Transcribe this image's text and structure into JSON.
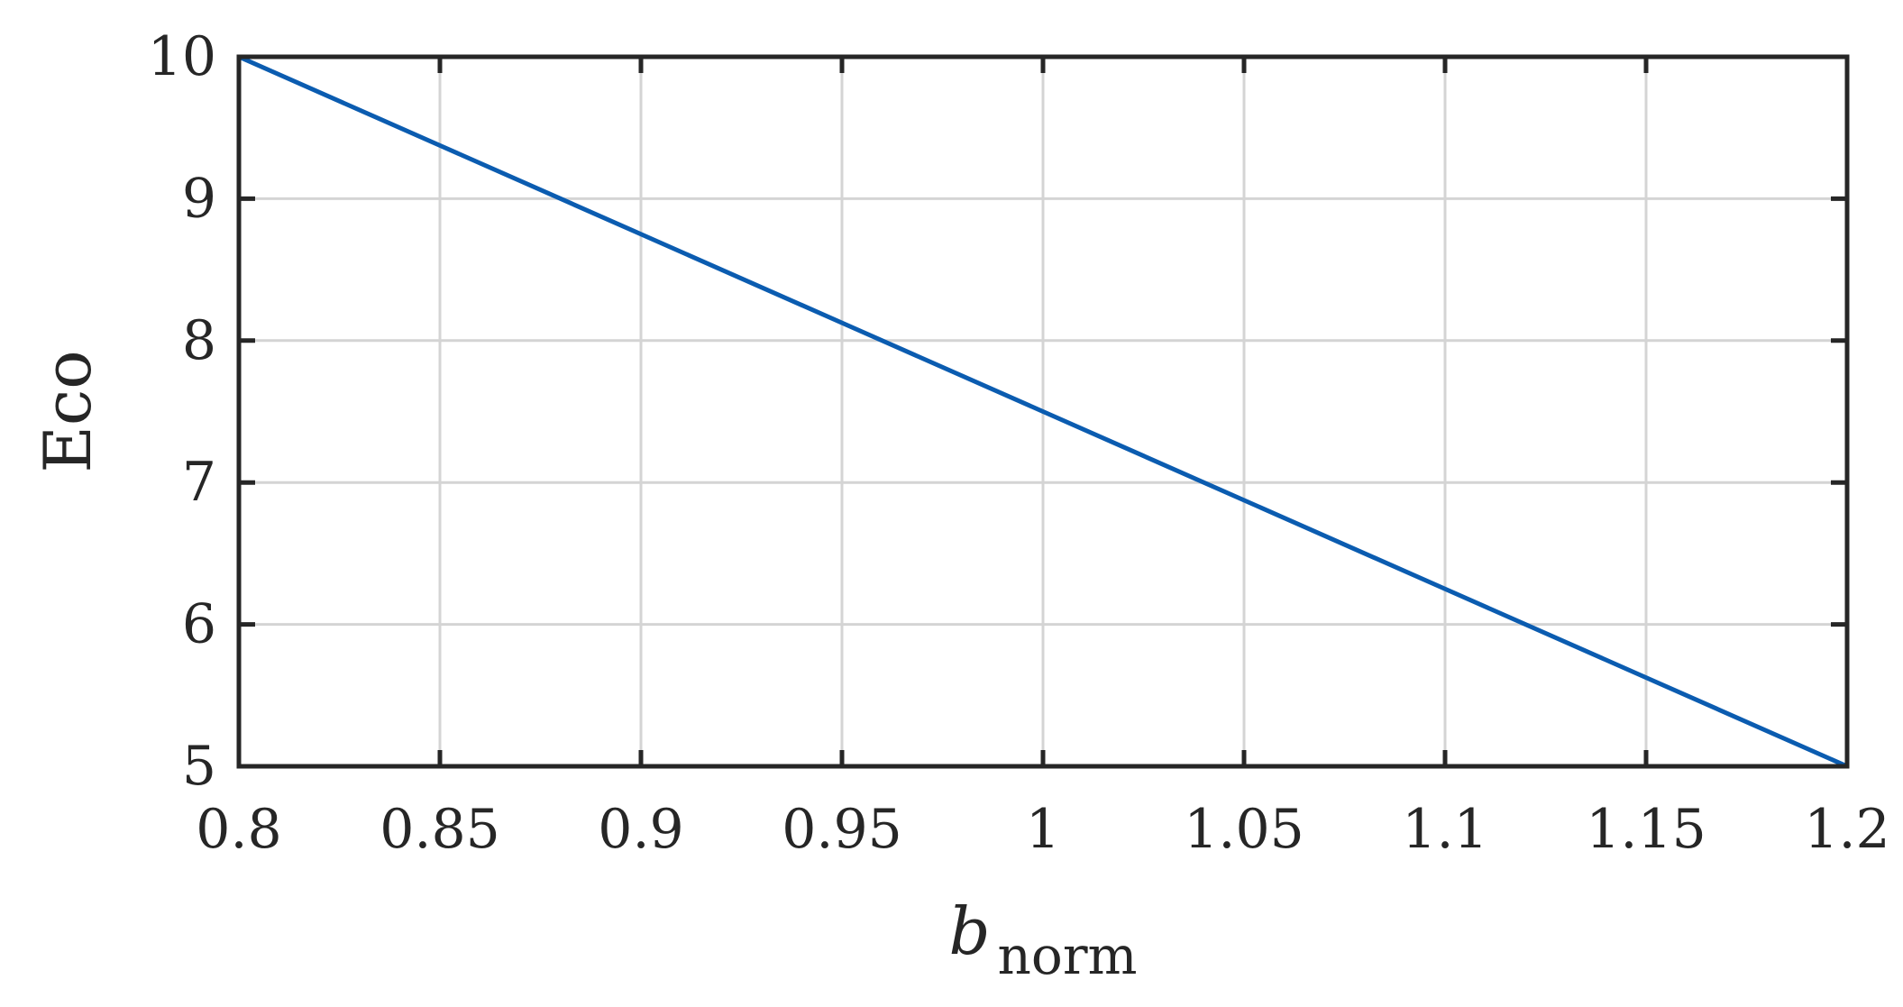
{
  "chart_data": {
    "type": "line",
    "xlabel": {
      "main": "b",
      "subscript": "norm"
    },
    "ylabel": "Eco",
    "xlim": [
      0.8,
      1.2
    ],
    "ylim": [
      5,
      10
    ],
    "xticks": [
      0.8,
      0.85,
      0.9,
      0.95,
      1,
      1.05,
      1.1,
      1.15,
      1.2
    ],
    "xtick_labels": [
      "0.8",
      "0.85",
      "0.9",
      "0.95",
      "1",
      "1.05",
      "1.1",
      "1.15",
      "1.2"
    ],
    "yticks": [
      5,
      6,
      7,
      8,
      9,
      10
    ],
    "ytick_labels": [
      "5",
      "6",
      "7",
      "8",
      "9",
      "10"
    ],
    "grid": true,
    "series": [
      {
        "color": "#0b5cb0",
        "x": [
          0.8,
          0.85,
          0.9,
          0.95,
          1,
          1.05,
          1.1,
          1.15,
          1.2
        ],
        "y": [
          10,
          9.375,
          8.75,
          8.125,
          7.5,
          6.875,
          6.25,
          5.625,
          5
        ]
      }
    ]
  }
}
